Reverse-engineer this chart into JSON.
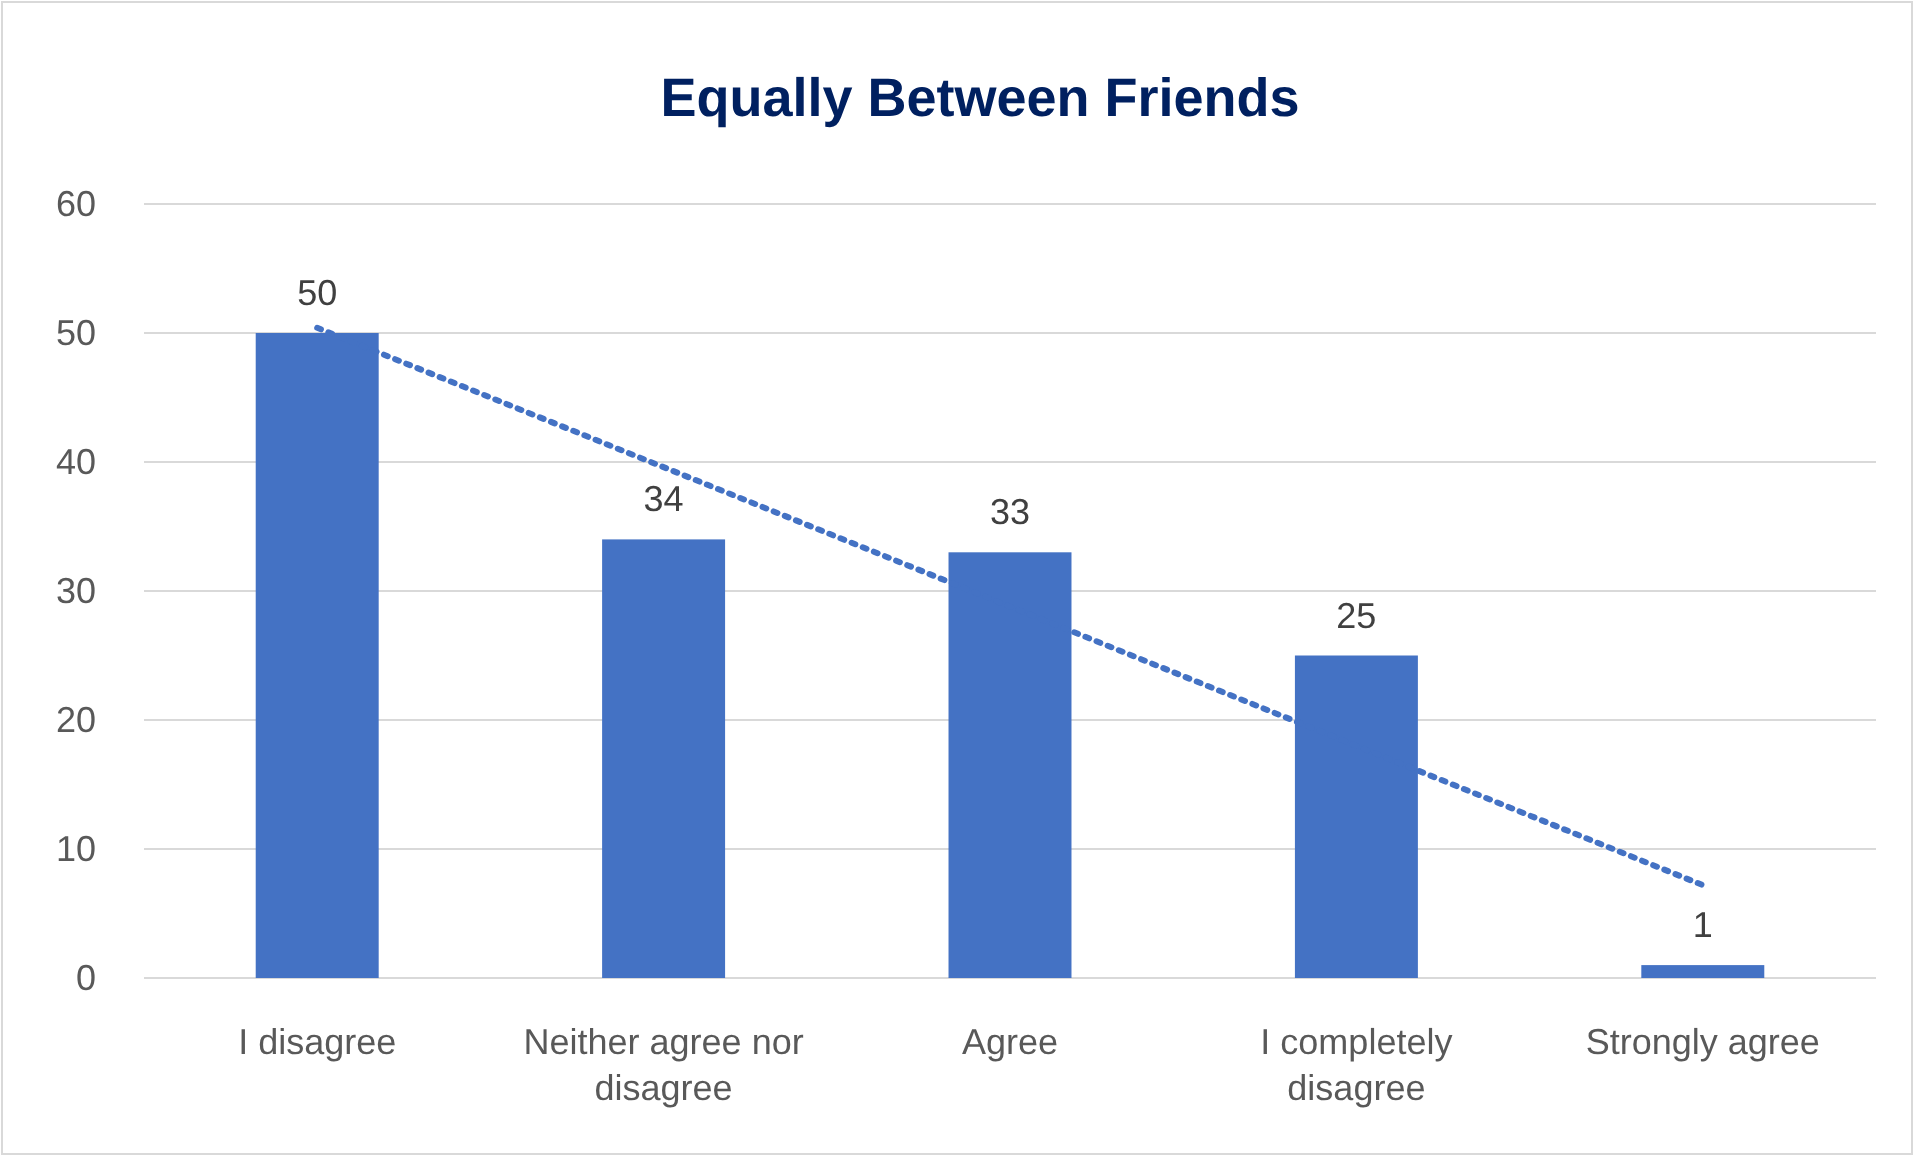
{
  "chart_data": {
    "type": "bar",
    "title": "Equally Between Friends",
    "categories": [
      "I disagree",
      "Neither agree nor disagree",
      "Agree",
      "I completely disagree",
      "Strongly agree"
    ],
    "series": [
      {
        "color": "#4472c4",
        "values": [
          50,
          34,
          33,
          25,
          1
        ]
      },
      {
        "type": "line",
        "color": "#4472c4",
        "x": [
          "I disagree",
          "Strongly agree"
        ],
        "values": [
          50.4,
          7.2
        ],
        "value_labels": [
          null,
          null
        ],
        "line_style": "dotted",
        "marker": "none"
      }
    ],
    "ylim": [
      0,
      60
    ],
    "yticks": [
      0,
      10,
      20,
      30,
      40,
      50,
      60
    ],
    "grid": "y",
    "data_labels": true
  }
}
